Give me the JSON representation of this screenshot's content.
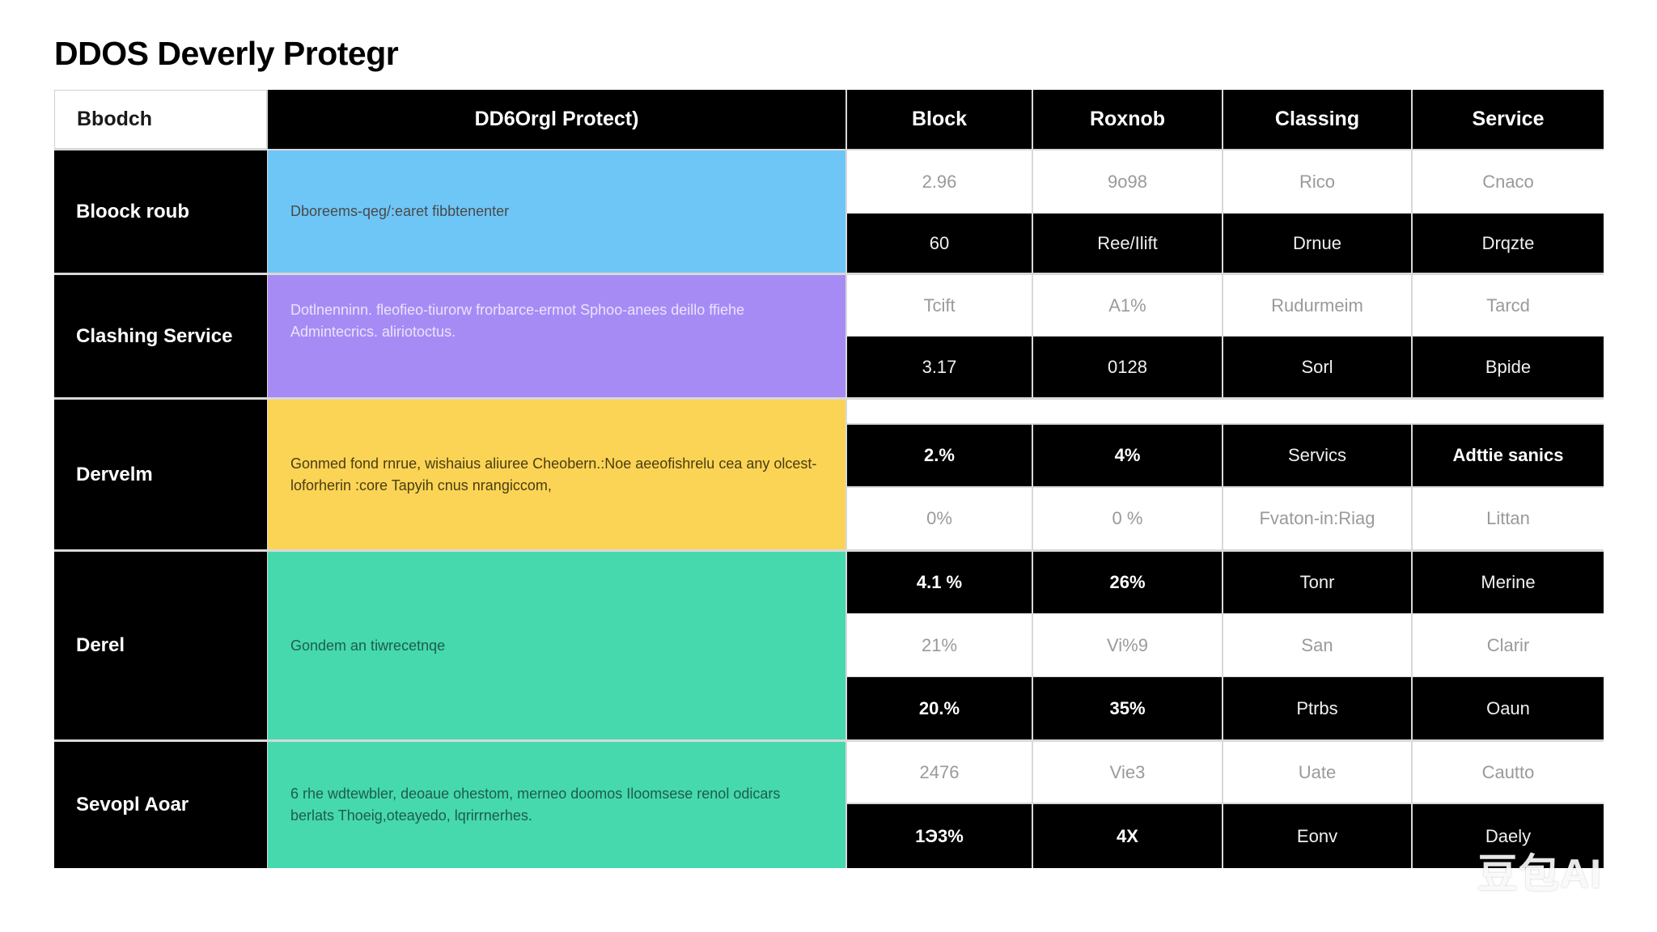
{
  "title": "DDOS Deverly Protegr",
  "header": [
    "Bbodch",
    "DD6Orgl Protect)",
    "Block",
    "Roxnob",
    "Classing",
    "Service"
  ],
  "rows": [
    {
      "label": "Bloock roub",
      "description": "Dboreems-qeg/:earet fibbtenenter",
      "color": "#6ec6f7",
      "values": [
        [
          "2.96",
          "9o98",
          "Rico",
          "Cnaco"
        ],
        [
          "60",
          "Ree/Ilift",
          "Drnue",
          "Drqzte"
        ]
      ]
    },
    {
      "label": "Clashing Service",
      "description": "Dotlnenninn. fleofieo-tiurorw frorbarce-ermot Sphoo-anees deillo ffiehe Admintecrics. aliriotoctus.",
      "color": "#a78bf5",
      "values": [
        [
          "Tcift",
          "A1%",
          "Rudurmeim",
          "Tarcd"
        ],
        [
          "3.17",
          "0128",
          "Sorl",
          "Bpide"
        ]
      ]
    },
    {
      "label": "Dervelm",
      "description": "Gonmed fond rnrue, wishaius aliuree Cheobern.:Noe aeeofishrelu cea any olcest- loforherin :core Tapyih cnus nrangiccom,",
      "color": "#fbd456",
      "values": [
        [
          "2.%",
          "4%",
          "Servics",
          "Adttie sanics"
        ],
        [
          "0%",
          "0 %",
          "Fvaton-in:Riag",
          "Littan"
        ]
      ]
    },
    {
      "label": "Derel",
      "description": "Gondem an tiwrecetnqe",
      "color": "#45d9ad",
      "values": [
        [
          "4.1 %",
          "26%",
          "Tonr",
          "Merine"
        ],
        [
          "21%",
          "Vi%9",
          "San",
          "Clarir"
        ],
        [
          "20.%",
          "35%",
          "Ptrbs",
          "Oaun"
        ]
      ]
    },
    {
      "label": "Sevopl Aoar",
      "description": "6 rhe wdtewbler, deoaue ohestom, merneo doomos Iloomsese renol odicars berlats Thoeig,oteayedo, lqrirrnerhes.",
      "color": "#45d9ad",
      "values": [
        [
          "2476",
          "Vie3",
          "Uate",
          "Cautto"
        ],
        [
          "1Э3%",
          "4X",
          "Eonv",
          "Daely"
        ]
      ]
    }
  ],
  "watermark": "豆包AI"
}
